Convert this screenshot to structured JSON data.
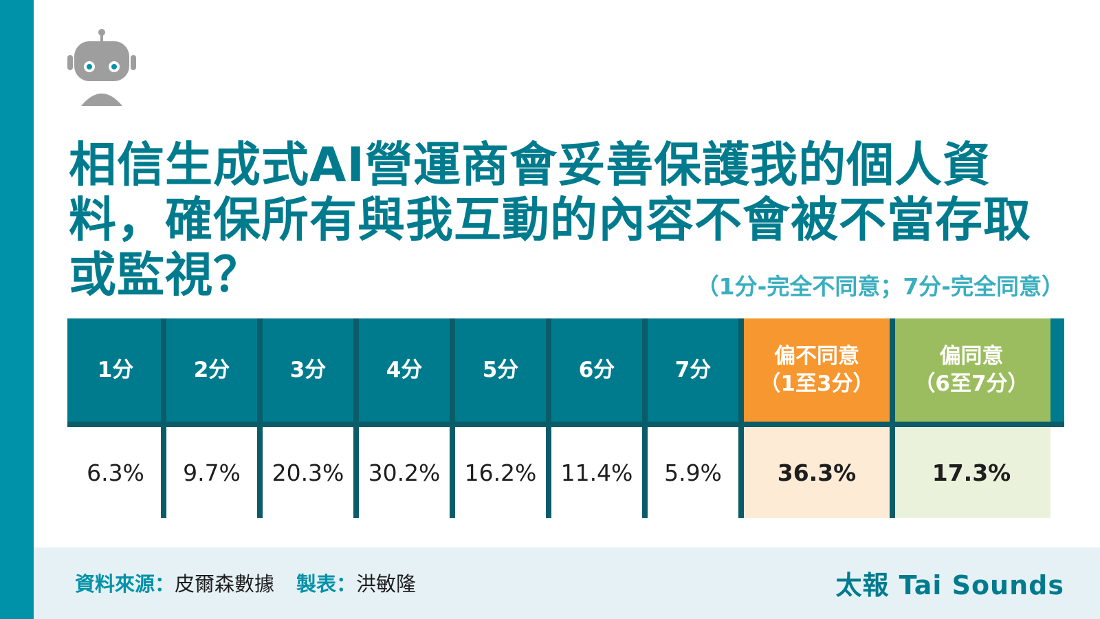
{
  "title": "相信生成式AI營運商會妥善保護我的個人資料，確保所有與我互動的內容不會被不當存取或監視？",
  "scale_note": "（1分-完全不同意；7分-完全同意）",
  "icons": {
    "robot": "robot-icon"
  },
  "colors": {
    "accent": "#0092a8",
    "header": "#007b8e",
    "disagree": "#f7972f",
    "agree": "#9cbd5f",
    "disagree_light": "#fdebd6",
    "agree_light": "#ebf2dc"
  },
  "chart_data": {
    "type": "table",
    "columns": [
      "1分",
      "2分",
      "3分",
      "4分",
      "5分",
      "6分",
      "7分",
      "偏不同意\n（1至3分）",
      "偏同意\n（6至7分）"
    ],
    "values": [
      "6.3%",
      "9.7%",
      "20.3%",
      "30.2%",
      "16.2%",
      "11.4%",
      "5.9%",
      "36.3%",
      "17.3%"
    ]
  },
  "footer": {
    "source_label": "資料來源：",
    "source_value": "皮爾森數據",
    "maker_label": "製表：",
    "maker_value": "洪敏隆",
    "brand": "太報 Tai Sounds"
  }
}
